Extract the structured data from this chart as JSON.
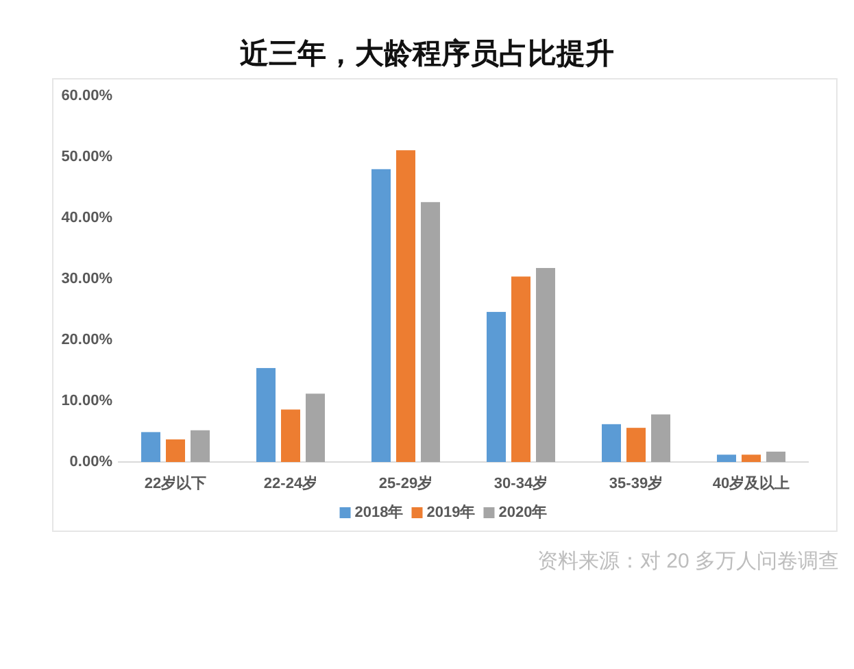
{
  "chart_data": {
    "type": "bar",
    "title": "近三年，大龄程序员占比提升",
    "categories": [
      "22岁以下",
      "22-24岁",
      "25-29岁",
      "30-34岁",
      "35-39岁",
      "40岁及以上"
    ],
    "series": [
      {
        "name": "2018年",
        "color": "#5b9bd5",
        "values": [
          4.9,
          15.4,
          48.0,
          24.6,
          6.2,
          1.2
        ]
      },
      {
        "name": "2019年",
        "color": "#ed7d31",
        "values": [
          3.7,
          8.6,
          51.1,
          30.4,
          5.6,
          1.2
        ]
      },
      {
        "name": "2020年",
        "color": "#a5a5a5",
        "values": [
          5.2,
          11.2,
          42.6,
          31.8,
          7.8,
          1.7
        ]
      }
    ],
    "ylim": [
      0,
      60
    ],
    "yticks": [
      {
        "value": 0,
        "label": "0.00%"
      },
      {
        "value": 10,
        "label": "10.00%"
      },
      {
        "value": 20,
        "label": "20.00%"
      },
      {
        "value": 30,
        "label": "30.00%"
      },
      {
        "value": 40,
        "label": "40.00%"
      },
      {
        "value": 50,
        "label": "50.00%"
      },
      {
        "value": 60,
        "label": "60.00%"
      }
    ],
    "legend": "bottom",
    "annotations": [
      "资料来源：对 20 多万人问卷调查"
    ]
  }
}
